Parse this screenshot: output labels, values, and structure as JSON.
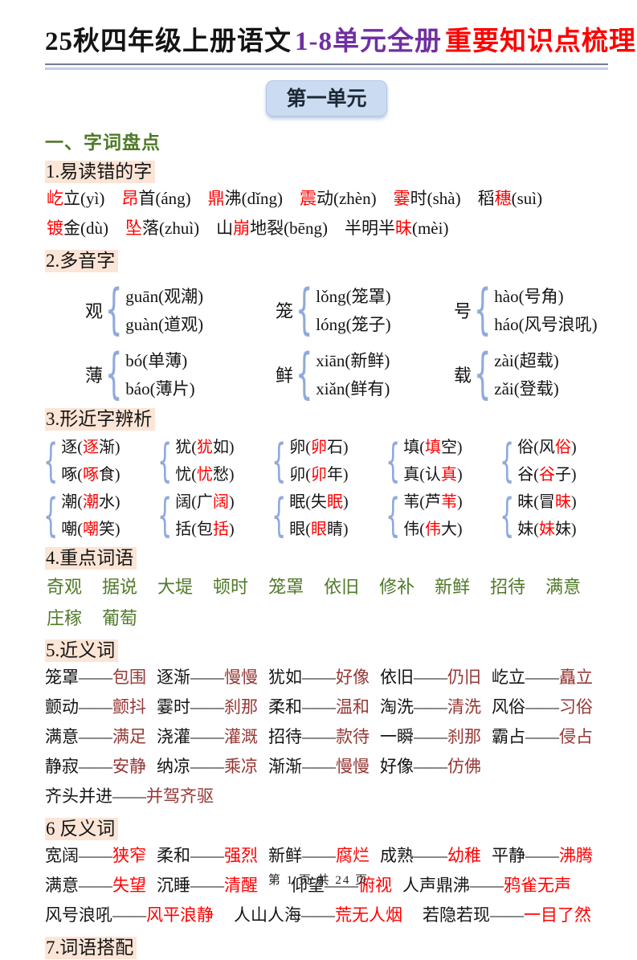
{
  "title": {
    "black": "25秋四年级上册语文",
    "purple": "1-8单元全册",
    "red": "重要知识点梳理"
  },
  "unit_badge": "第一单元",
  "section1_title": "一、字词盘点",
  "headings": {
    "h1": "1.易读错的字",
    "h2": "2.多音字",
    "h3": "3.形近字辨析",
    "h4": "4.重点词语",
    "h5": "5.近义词",
    "h6": "6 反义词",
    "h7": "7.词语搭配"
  },
  "dash": "——",
  "icons": {
    "brace": "{"
  },
  "colors": {
    "title_purple": "#7030A0",
    "accent_red": "#FF0000",
    "green": "#4F7A28",
    "maroon": "#953735",
    "highlight_peach": "#FBE5D6",
    "badge_blue": "#CBDCF2",
    "brace_blue": "#8FAADC"
  },
  "misread": {
    "line1": [
      {
        "pre": "",
        "red": "屹",
        "post": "立(yì)"
      },
      {
        "pre": "",
        "red": "昂",
        "post": "首(áng)"
      },
      {
        "pre": "",
        "red": "鼎",
        "post": "沸(dǐng)"
      },
      {
        "pre": "",
        "red": "震",
        "post": "动(zhèn)"
      },
      {
        "pre": "",
        "red": "霎",
        "post": "时(shà)"
      },
      {
        "pre": "稻",
        "red": "穗",
        "post": "(suì)"
      }
    ],
    "line2": [
      {
        "pre": "",
        "red": "镀",
        "post": "金(dù)"
      },
      {
        "pre": "",
        "red": "坠",
        "post": "落(zhuì)"
      },
      {
        "pre": "山",
        "red": "崩",
        "post": "地裂(bēng)"
      },
      {
        "pre": "半明半",
        "red": "昧",
        "post": "(mèi)"
      }
    ]
  },
  "polyphonic": {
    "row1": [
      {
        "char": "观",
        "top": "guān(观潮)",
        "bottom": "guàn(道观)"
      },
      {
        "char": "笼",
        "top": "lǒng(笼罩)",
        "bottom": "lóng(笼子)"
      },
      {
        "char": "号",
        "top": "hào(号角)",
        "bottom": "háo(风号浪吼)"
      }
    ],
    "row2": [
      {
        "char": "薄",
        "top": "bó(单薄)",
        "bottom": "báo(薄片)"
      },
      {
        "char": "鲜",
        "top": "xiān(新鲜)",
        "bottom": "xiǎn(鲜有)"
      },
      {
        "char": "载",
        "top": "zài(超载)",
        "bottom": "zǎi(登载)"
      }
    ]
  },
  "similar": {
    "row1": [
      {
        "t": {
          "pre": "逐(",
          "red": "逐",
          "post": "渐)"
        },
        "b": {
          "pre": "啄(",
          "red": "啄",
          "post": "食)"
        }
      },
      {
        "t": {
          "pre": "犹(",
          "red": "犹",
          "post": "如)"
        },
        "b": {
          "pre": "忧(",
          "red": "忧",
          "post": "愁)"
        }
      },
      {
        "t": {
          "pre": "卵(",
          "red": "卵",
          "post": "石)"
        },
        "b": {
          "pre": "卯(",
          "red": "卯",
          "post": "年)"
        }
      },
      {
        "t": {
          "pre": "填(",
          "red": "填",
          "post": "空)"
        },
        "b": {
          "pre": "真(认",
          "red": "真",
          "post": ")"
        }
      },
      {
        "t": {
          "pre": "俗(风",
          "red": "俗",
          "post": ")"
        },
        "b": {
          "pre": "谷(",
          "red": "谷",
          "post": "子)"
        }
      }
    ],
    "row2": [
      {
        "t": {
          "pre": "潮(",
          "red": "潮",
          "post": "水)"
        },
        "b": {
          "pre": "嘲(",
          "red": "嘲",
          "post": "笑)"
        }
      },
      {
        "t": {
          "pre": "阔(广",
          "red": "阔",
          "post": ")"
        },
        "b": {
          "pre": "括(包",
          "red": "括",
          "post": ")"
        }
      },
      {
        "t": {
          "pre": "眠(失",
          "red": "眠",
          "post": ")"
        },
        "b": {
          "pre": "眼(",
          "red": "眼",
          "post": "睛)"
        }
      },
      {
        "t": {
          "pre": "苇(芦",
          "red": "苇",
          "post": ")"
        },
        "b": {
          "pre": "伟(",
          "red": "伟",
          "post": "大)"
        }
      },
      {
        "t": {
          "pre": "昧(冒",
          "red": "昧",
          "post": ")"
        },
        "b": {
          "pre": "妹(",
          "red": "妹",
          "post": "妹)"
        }
      }
    ]
  },
  "key_words": {
    "line1": [
      "奇观",
      "据说",
      "大堤",
      "顿时",
      "笼罩",
      "依旧",
      "修补",
      "新鲜",
      "招待",
      "满意"
    ],
    "line2": [
      "庄稼",
      "葡萄"
    ]
  },
  "synonyms": {
    "row1": [
      {
        "w": "笼罩",
        "a": "包围"
      },
      {
        "w": "逐渐",
        "a": "慢慢"
      },
      {
        "w": "犹如",
        "a": "好像"
      },
      {
        "w": "依旧",
        "a": "仍旧"
      },
      {
        "w": "屹立",
        "a": "矗立"
      }
    ],
    "row2": [
      {
        "w": "颤动",
        "a": "颤抖"
      },
      {
        "w": "霎时",
        "a": "刹那"
      },
      {
        "w": "柔和",
        "a": "温和"
      },
      {
        "w": "淘洗",
        "a": "清洗"
      },
      {
        "w": "风俗",
        "a": "习俗"
      }
    ],
    "row3": [
      {
        "w": "满意",
        "a": "满足"
      },
      {
        "w": "浇灌",
        "a": "灌溉"
      },
      {
        "w": "招待",
        "a": "款待"
      },
      {
        "w": "一瞬",
        "a": "刹那"
      },
      {
        "w": "霸占",
        "a": "侵占"
      }
    ],
    "row4": [
      {
        "w": "静寂",
        "a": "安静"
      },
      {
        "w": "纳凉",
        "a": "乘凉"
      },
      {
        "w": "渐渐",
        "a": "慢慢"
      },
      {
        "w": "好像",
        "a": "仿佛"
      }
    ],
    "row5": [
      {
        "w": "齐头并进",
        "a": "并驾齐驱"
      }
    ]
  },
  "antonyms": {
    "row1": [
      {
        "w": "宽阔",
        "a": "狭窄"
      },
      {
        "w": "柔和",
        "a": "强烈"
      },
      {
        "w": "新鲜",
        "a": "腐烂"
      },
      {
        "w": "成熟",
        "a": "幼稚"
      },
      {
        "w": "平静",
        "a": "沸腾"
      }
    ],
    "row2": [
      {
        "w": "满意",
        "a": "失望"
      },
      {
        "w": "沉睡",
        "a": "清醒"
      },
      {
        "w": "仰望",
        "a": "俯视"
      },
      {
        "w": "人声鼎沸",
        "a": "鸦雀无声"
      }
    ],
    "row3": [
      {
        "w": "风号浪吼",
        "a": "风平浪静"
      },
      {
        "w": "人山人海",
        "a": "荒无人烟"
      },
      {
        "w": "若隐若现",
        "a": "一目了然"
      }
    ]
  },
  "footer": "第 1 页 共 24 页"
}
